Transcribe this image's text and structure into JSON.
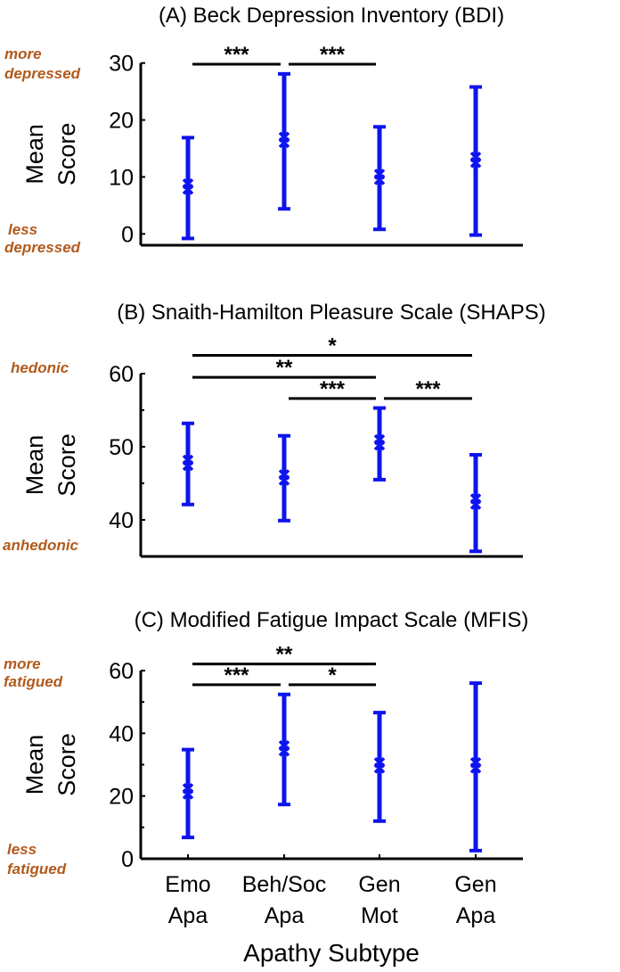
{
  "colors": {
    "series": "#0d14ee",
    "annotation": "#b15a1c",
    "axis": "#000000"
  },
  "xlabel": "Apathy Subtype",
  "chart_data": [
    {
      "type": "errorbar",
      "title": "(A) Beck Depression Inventory (BDI)",
      "ylabel": [
        "Mean",
        "Score"
      ],
      "ylim": [
        -2,
        30
      ],
      "yticks": [
        0,
        10,
        20,
        30
      ],
      "minor_yticks": [],
      "annotations": {
        "top": [
          "more",
          "depressed"
        ],
        "bottom": [
          "less",
          "depressed"
        ]
      },
      "categories": [
        "Emo Apa",
        "Beh/Soc Apa",
        "Gen Mot",
        "Gen Apa"
      ],
      "mean": [
        8.3,
        16.5,
        10.0,
        13.0
      ],
      "upper": [
        16.9,
        28.1,
        18.8,
        25.8
      ],
      "lower": [
        -0.8,
        4.4,
        0.8,
        -0.2
      ],
      "significance": [
        {
          "from": 0,
          "to": 1,
          "label": "***",
          "y": 29.8
        },
        {
          "from": 1,
          "to": 2,
          "label": "***",
          "y": 29.8
        }
      ]
    },
    {
      "type": "errorbar",
      "title": "(B) Snaith-Hamilton Pleasure Scale (SHAPS)",
      "ylabel": [
        "Mean",
        "Score"
      ],
      "ylim": [
        35,
        60
      ],
      "yticks": [
        40,
        50,
        60
      ],
      "minor_yticks": [
        45,
        55
      ],
      "annotations": {
        "top": [
          "hedonic"
        ],
        "bottom": [
          "anhedonic"
        ]
      },
      "categories": [
        "Emo Apa",
        "Beh/Soc Apa",
        "Gen Mot",
        "Gen Apa"
      ],
      "mean": [
        47.8,
        45.8,
        50.6,
        42.5
      ],
      "upper": [
        53.2,
        51.5,
        55.3,
        48.9
      ],
      "lower": [
        42.1,
        39.9,
        45.5,
        35.7
      ],
      "significance": [
        {
          "from": 0,
          "to": 3,
          "label": "*",
          "y": 62.5
        },
        {
          "from": 0,
          "to": 2,
          "label": "**",
          "y": 59.5
        },
        {
          "from": 1,
          "to": 2,
          "label": "***",
          "y": 56.6
        },
        {
          "from": 2,
          "to": 3,
          "label": "***",
          "y": 56.6
        }
      ]
    },
    {
      "type": "errorbar",
      "title": "(C) Modified Fatigue Impact Scale (MFIS)",
      "ylabel": [
        "Mean",
        "Score"
      ],
      "ylim": [
        0,
        60
      ],
      "yticks": [
        0,
        20,
        40,
        60
      ],
      "minor_yticks": [
        10,
        30,
        50
      ],
      "annotations": {
        "top": [
          "more",
          "fatigued"
        ],
        "bottom": [
          "less",
          "fatigued"
        ]
      },
      "categories": [
        "Emo Apa",
        "Beh/Soc Apa",
        "Gen Mot",
        "Gen Apa"
      ],
      "category_lines": [
        [
          "Emo",
          "Apa"
        ],
        [
          "Beh/Soc",
          "Apa"
        ],
        [
          "Gen",
          "Mot"
        ],
        [
          "Gen",
          "Apa"
        ]
      ],
      "mean": [
        21.5,
        35.2,
        29.8,
        29.8
      ],
      "upper": [
        34.8,
        52.4,
        46.6,
        56.0
      ],
      "lower": [
        6.8,
        17.3,
        12.0,
        2.6
      ],
      "significance": [
        {
          "from": 0,
          "to": 2,
          "label": "**",
          "y": 62.1
        },
        {
          "from": 0,
          "to": 1,
          "label": "***",
          "y": 55.5
        },
        {
          "from": 1,
          "to": 2,
          "label": "*",
          "y": 55.5
        }
      ]
    }
  ]
}
